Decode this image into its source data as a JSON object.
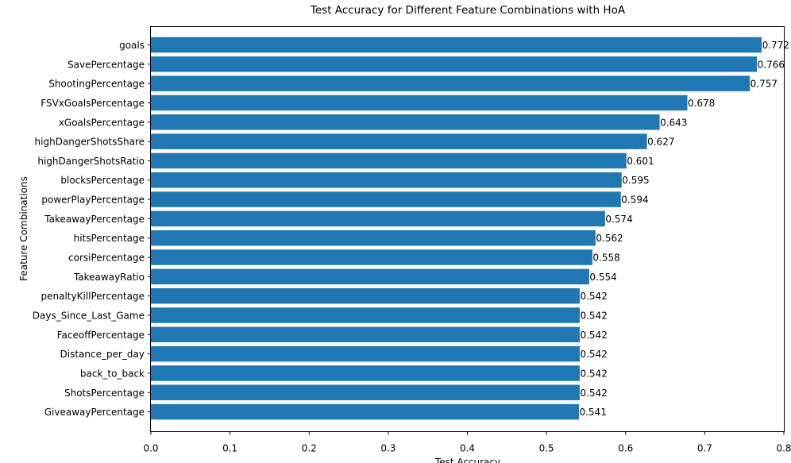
{
  "chart_data": {
    "type": "bar",
    "orientation": "horizontal",
    "title": "Test Accuracy for Different Feature Combinations with HoA",
    "xlabel": "Test Accuracy",
    "ylabel": "Feature Combinations",
    "xlim": [
      0,
      0.8
    ],
    "xticks": [
      0.0,
      0.1,
      0.2,
      0.3,
      0.4,
      0.5,
      0.6,
      0.7,
      0.8
    ],
    "xtick_labels": [
      "0.0",
      "0.1",
      "0.2",
      "0.3",
      "0.4",
      "0.5",
      "0.6",
      "0.7",
      "0.8"
    ],
    "grid": false,
    "bar_color": "#1f77b4",
    "categories": [
      "goals",
      "SavePercentage",
      "ShootingPercentage",
      "FSVxGoalsPercentage",
      "xGoalsPercentage",
      "highDangerShotsShare",
      "highDangerShotsRatio",
      "blocksPercentage",
      "powerPlayPercentage",
      "TakeawayPercentage",
      "hitsPercentage",
      "corsiPercentage",
      "TakeawayRatio",
      "penaltyKillPercentage",
      "Days_Since_Last_Game",
      "FaceoffPercentage",
      "Distance_per_day",
      "back_to_back",
      "ShotsPercentage",
      "GiveawayPercentage"
    ],
    "values": [
      0.772,
      0.766,
      0.757,
      0.678,
      0.643,
      0.627,
      0.601,
      0.595,
      0.594,
      0.574,
      0.562,
      0.558,
      0.554,
      0.542,
      0.542,
      0.542,
      0.542,
      0.542,
      0.542,
      0.541
    ],
    "value_labels": [
      "0.772",
      "0.766",
      "0.757",
      "0.678",
      "0.643",
      "0.627",
      "0.601",
      "0.595",
      "0.594",
      "0.574",
      "0.562",
      "0.558",
      "0.554",
      "0.542",
      "0.542",
      "0.542",
      "0.542",
      "0.542",
      "0.542",
      "0.541"
    ]
  }
}
